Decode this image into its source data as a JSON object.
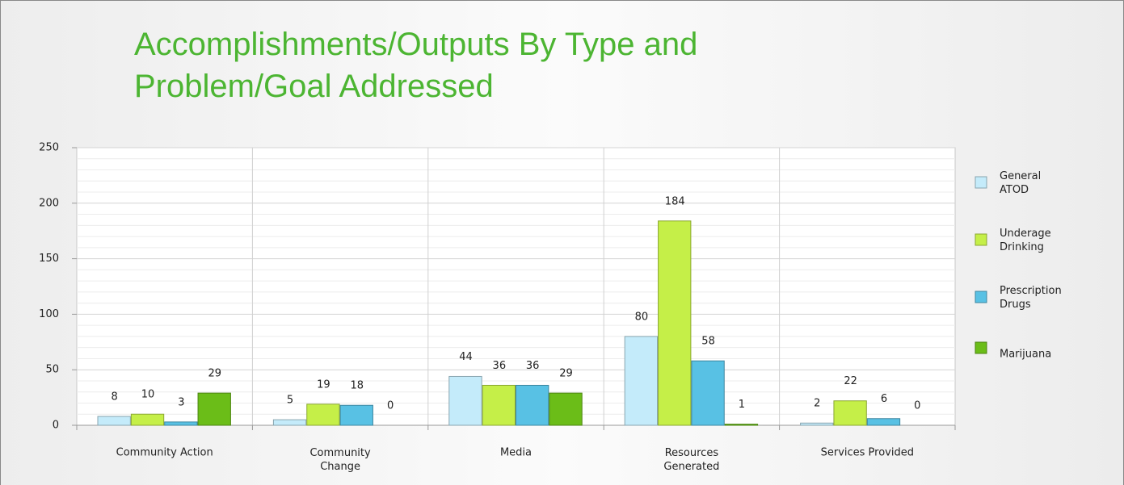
{
  "chart_data": {
    "type": "bar",
    "title": "Accomplishments/Outputs By Type and\nProblem/Goal Addressed",
    "categories": [
      "Community Action",
      "Community\nChange",
      "Media",
      "Resources\nGenerated",
      "Services Provided"
    ],
    "series": [
      {
        "name": "General ATOD",
        "color": "#c4ebfa",
        "values": [
          8,
          5,
          44,
          80,
          2
        ]
      },
      {
        "name": "Underage Drinking",
        "color": "#c5ef48",
        "values": [
          10,
          19,
          36,
          184,
          22
        ]
      },
      {
        "name": "Prescription Drugs",
        "color": "#58c1e4",
        "values": [
          3,
          18,
          36,
          58,
          6
        ]
      },
      {
        "name": "Marijuana",
        "color": "#6bbd18",
        "values": [
          29,
          0,
          29,
          1,
          0
        ]
      }
    ],
    "ylim": [
      0,
      250
    ],
    "yticks": [
      0,
      50,
      100,
      150,
      200,
      250
    ],
    "minor_yticks": [
      10,
      20,
      30,
      40,
      60,
      70,
      80,
      90,
      110,
      120,
      130,
      140,
      160,
      170,
      180,
      190,
      210,
      220,
      230,
      240
    ],
    "grid": true,
    "legend": "right"
  }
}
